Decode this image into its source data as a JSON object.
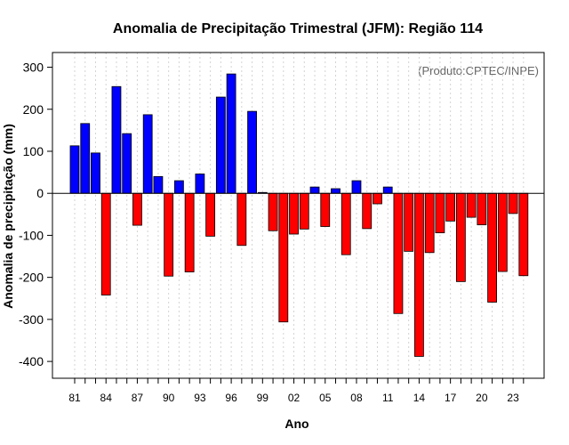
{
  "chart_data": {
    "type": "bar",
    "title": "Anomalia de Precipitação Trimestral (JFM): Região 114",
    "xlabel": "Ano",
    "ylabel": "Anomalia de precipitação (mm)",
    "annotation": "(Produto:CPTEC/INPE)",
    "ylim": [
      -440,
      335
    ],
    "yticks": [
      -400,
      -300,
      -200,
      -100,
      0,
      100,
      200,
      300
    ],
    "x_tick_labels": [
      "81",
      "84",
      "87",
      "90",
      "93",
      "96",
      "99",
      "02",
      "05",
      "08",
      "11",
      "14",
      "17",
      "20",
      "23"
    ],
    "years": [
      "1981",
      "1982",
      "1983",
      "1984",
      "1985",
      "1986",
      "1987",
      "1988",
      "1989",
      "1990",
      "1991",
      "1992",
      "1993",
      "1994",
      "1995",
      "1996",
      "1997",
      "1998",
      "1999",
      "2000",
      "2001",
      "2002",
      "2003",
      "2004",
      "2005",
      "2006",
      "2007",
      "2008",
      "2009",
      "2010",
      "2011",
      "2012",
      "2013",
      "2014",
      "2015",
      "2016",
      "2017",
      "2018",
      "2019",
      "2020",
      "2021",
      "2022",
      "2023",
      "2024"
    ],
    "values": [
      113,
      166,
      96,
      -242,
      254,
      142,
      -76,
      187,
      40,
      -197,
      30,
      -187,
      46,
      -102,
      229,
      284,
      -124,
      195,
      2,
      -89,
      -306,
      -97,
      -85,
      15,
      -79,
      11,
      -146,
      30,
      -84,
      -25,
      15,
      -286,
      -138,
      -388,
      -141,
      -94,
      -66,
      -210,
      -57,
      -75,
      -259,
      -186,
      -48,
      -196
    ],
    "colors": {
      "positive": "#0000ff",
      "negative": "#ff0000",
      "grid": "#d3d3d3"
    }
  }
}
